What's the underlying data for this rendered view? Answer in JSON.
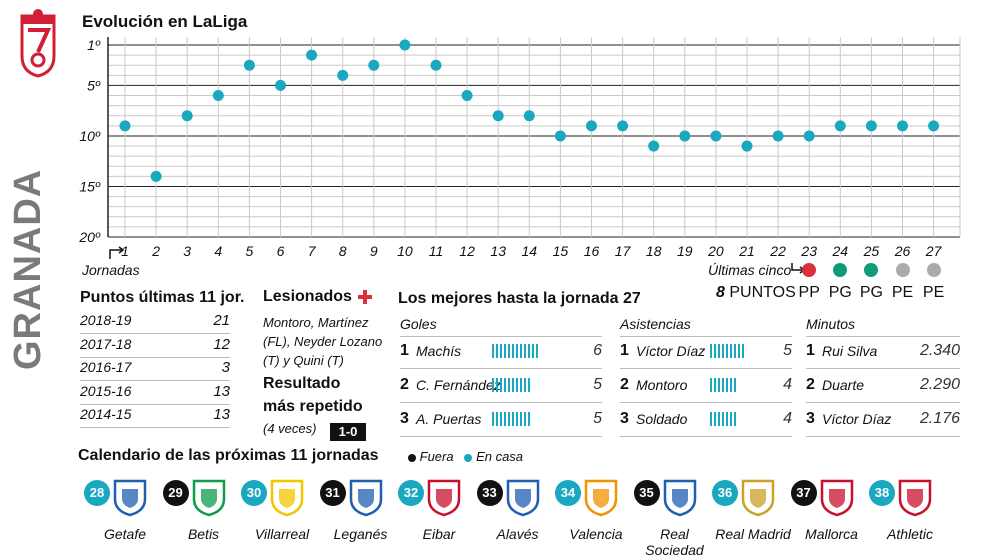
{
  "brand": {
    "club": "GRANADA",
    "colors": {
      "red": "#d21f36",
      "teal": "#19a8c0",
      "green": "#0e9c7d",
      "grey": "#aaaaaa",
      "black": "#111111"
    }
  },
  "chart_title": "Evolución en LaLiga",
  "chart_data": {
    "type": "scatter",
    "title": "Evolución en LaLiga",
    "xlabel": "Jornadas",
    "ylabel": "",
    "x": [
      1,
      2,
      3,
      4,
      5,
      6,
      7,
      8,
      9,
      10,
      11,
      12,
      13,
      14,
      15,
      16,
      17,
      18,
      19,
      20,
      21,
      22,
      23,
      24,
      25,
      26,
      27
    ],
    "y": [
      9,
      14,
      8,
      6,
      3,
      5,
      2,
      4,
      3,
      1,
      3,
      6,
      8,
      8,
      10,
      9,
      9,
      11,
      10,
      10,
      11,
      10,
      10,
      9,
      9,
      9,
      9
    ],
    "y_tick_labels": [
      "1º",
      "5º",
      "10º",
      "15º",
      "20º"
    ],
    "y_ticks": [
      1,
      5,
      10,
      15,
      20
    ],
    "ylim": [
      1,
      20
    ],
    "y_inverted": true,
    "grid": true,
    "x_tick_labels": [
      "1",
      "2",
      "3",
      "4",
      "5",
      "6",
      "7",
      "8",
      "9",
      "10",
      "11",
      "12",
      "13",
      "14",
      "15",
      "16",
      "17",
      "18",
      "19",
      "20",
      "21",
      "22",
      "23",
      "24",
      "25",
      "26",
      "27"
    ]
  },
  "ultimas": {
    "label": "Últimas cinco",
    "points_value": "8",
    "points_label": "PUNTOS",
    "results": [
      {
        "code": "PP",
        "color": "#d9303c"
      },
      {
        "code": "PG",
        "color": "#0e9c7d"
      },
      {
        "code": "PG",
        "color": "#0e9c7d"
      },
      {
        "code": "PE",
        "color": "#aaaaaa"
      },
      {
        "code": "PE",
        "color": "#aaaaaa"
      }
    ]
  },
  "puntos": {
    "title": "Puntos últimas 11 jor.",
    "rows": [
      {
        "season": "2018-19",
        "points": "21"
      },
      {
        "season": "2017-18",
        "points": "12"
      },
      {
        "season": "2016-17",
        "points": "3"
      },
      {
        "season": "2015-16",
        "points": "13"
      },
      {
        "season": "2014-15",
        "points": "13"
      }
    ]
  },
  "lesionados": {
    "title": "Lesionados",
    "text": "Montoro, Martínez (FL), Neyder Lozano (T) y Quini (T)"
  },
  "resultado": {
    "title_1": "Resultado",
    "title_2": "más repetido",
    "times": "(4 veces)",
    "score": "1-0"
  },
  "mejores": {
    "title": "Los mejores hasta la jornada 27",
    "goles": {
      "header": "Goles",
      "rows": [
        {
          "rank": "1",
          "name": "Machís",
          "value": "6"
        },
        {
          "rank": "2",
          "name": "C. Fernández",
          "value": "5"
        },
        {
          "rank": "3",
          "name": "A. Puertas",
          "value": "5"
        }
      ]
    },
    "asistencias": {
      "header": "Asistencias",
      "rows": [
        {
          "rank": "1",
          "name": "Víctor Díaz",
          "value": "5"
        },
        {
          "rank": "2",
          "name": "Montoro",
          "value": "4"
        },
        {
          "rank": "3",
          "name": "Soldado",
          "value": "4"
        }
      ]
    },
    "minutos": {
      "header": "Minutos",
      "rows": [
        {
          "rank": "1",
          "name": "Rui Silva",
          "value": "2.340"
        },
        {
          "rank": "2",
          "name": "Duarte",
          "value": "2.290"
        },
        {
          "rank": "3",
          "name": "Víctor Díaz",
          "value": "2.176"
        }
      ]
    }
  },
  "calendario": {
    "title": "Calendario de las próximas 11 jornadas",
    "legend_away": "Fuera",
    "legend_home": "En casa",
    "matches": [
      {
        "jornada": "28",
        "team": "Getafe",
        "home": true
      },
      {
        "jornada": "29",
        "team": "Betis",
        "home": false
      },
      {
        "jornada": "30",
        "team": "Villarreal",
        "home": true
      },
      {
        "jornada": "31",
        "team": "Leganés",
        "home": false
      },
      {
        "jornada": "32",
        "team": "Eibar",
        "home": true
      },
      {
        "jornada": "33",
        "team": "Alavés",
        "home": false
      },
      {
        "jornada": "34",
        "team": "Valencia",
        "home": true
      },
      {
        "jornada": "35",
        "team": "Real Sociedad",
        "home": false
      },
      {
        "jornada": "36",
        "team": "Real Madrid",
        "home": true
      },
      {
        "jornada": "37",
        "team": "Mallorca",
        "home": false
      },
      {
        "jornada": "38",
        "team": "Athletic",
        "home": true
      }
    ]
  }
}
